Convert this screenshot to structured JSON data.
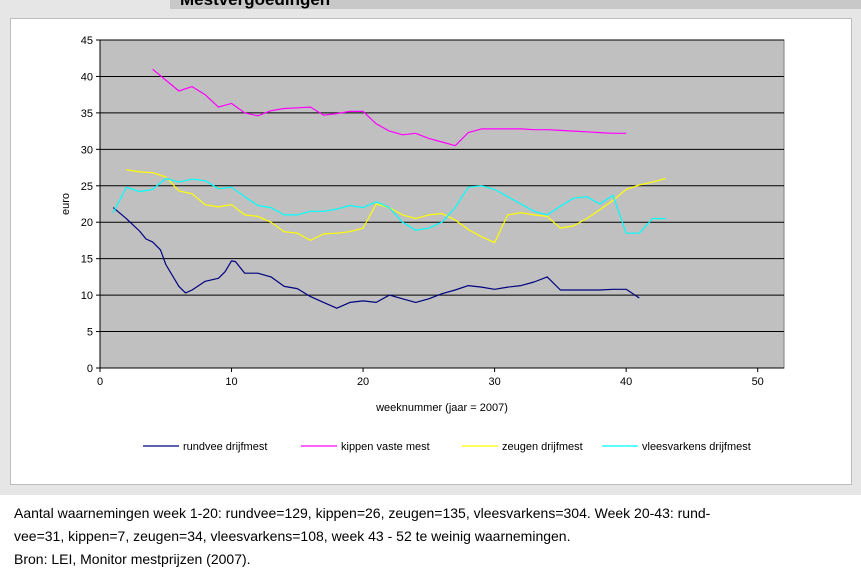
{
  "header": {
    "title_fragment": "Mestvergoedingen"
  },
  "caption": {
    "line1": "Aantal waarnemingen week 1-20: rundvee=129, kippen=26, zeugen=135, vleesvarkens=304. Week 20-43: rund-",
    "line2": "vee=31, kippen=7, zeugen=34, vleesvarkens=108, week 43 - 52 te weinig waarnemingen.",
    "line3": "Bron: LEI, Monitor mestprijzen (2007)."
  },
  "chart_data": {
    "type": "line",
    "title": "",
    "xlabel": "weeknummer (jaar = 2007)",
    "ylabel": "euro",
    "xlim": [
      0,
      52
    ],
    "ylim": [
      0,
      45
    ],
    "xticks": [
      0,
      10,
      20,
      30,
      40,
      50
    ],
    "yticks": [
      0,
      5,
      10,
      15,
      20,
      25,
      30,
      35,
      40,
      45
    ],
    "grid": "horizontal",
    "plot_background": "#c0c0c0",
    "legend_position": "bottom",
    "series": [
      {
        "name": "rundvee drijfmest",
        "color": "#000080",
        "points": [
          [
            1,
            22
          ],
          [
            2,
            20.5
          ],
          [
            3,
            18.8
          ],
          [
            3.5,
            17.7
          ],
          [
            4,
            17.3
          ],
          [
            4.6,
            16.2
          ],
          [
            5,
            14.2
          ],
          [
            6,
            11.2
          ],
          [
            6.5,
            10.3
          ],
          [
            7,
            10.7
          ],
          [
            8,
            11.9
          ],
          [
            9,
            12.3
          ],
          [
            9.5,
            13.2
          ],
          [
            10,
            14.7
          ],
          [
            10.3,
            14.6
          ],
          [
            11,
            13
          ],
          [
            12,
            13
          ],
          [
            13,
            12.5
          ],
          [
            14,
            11.2
          ],
          [
            15,
            10.9
          ],
          [
            16,
            9.8
          ],
          [
            17,
            9
          ],
          [
            18,
            8.2
          ],
          [
            19,
            9
          ],
          [
            20,
            9.2
          ],
          [
            21,
            9
          ],
          [
            22,
            10
          ],
          [
            23,
            9.5
          ],
          [
            24,
            9
          ],
          [
            25,
            9.5
          ],
          [
            26,
            10.2
          ],
          [
            27,
            10.7
          ],
          [
            28,
            11.3
          ],
          [
            29,
            11.1
          ],
          [
            30,
            10.8
          ],
          [
            31,
            11.1
          ],
          [
            32,
            11.3
          ],
          [
            33,
            11.8
          ],
          [
            34,
            12.5
          ],
          [
            35,
            10.7
          ],
          [
            36,
            10.7
          ],
          [
            37,
            10.7
          ],
          [
            38,
            10.7
          ],
          [
            39,
            10.8
          ],
          [
            40,
            10.8
          ],
          [
            41,
            9.6
          ]
        ]
      },
      {
        "name": "kippen vaste mest",
        "color": "#ff00ff",
        "points": [
          [
            4,
            41
          ],
          [
            5,
            39.5
          ],
          [
            6,
            38
          ],
          [
            7,
            38.6
          ],
          [
            8,
            37.5
          ],
          [
            9,
            35.8
          ],
          [
            10,
            36.3
          ],
          [
            11,
            35
          ],
          [
            12,
            34.6
          ],
          [
            13,
            35.3
          ],
          [
            14,
            35.6
          ],
          [
            15,
            35.7
          ],
          [
            16,
            35.8
          ],
          [
            17,
            34.7
          ],
          [
            18,
            34.9
          ],
          [
            19,
            35.2
          ],
          [
            20,
            35.2
          ],
          [
            21,
            33.5
          ],
          [
            22,
            32.5
          ],
          [
            23,
            32
          ],
          [
            24,
            32.2
          ],
          [
            25,
            31.5
          ],
          [
            26,
            31
          ],
          [
            27,
            30.5
          ],
          [
            28,
            32.3
          ],
          [
            29,
            32.8
          ],
          [
            30,
            32.8
          ],
          [
            31,
            32.8
          ],
          [
            32,
            32.8
          ],
          [
            33,
            32.7
          ],
          [
            34,
            32.7
          ],
          [
            35,
            32.6
          ],
          [
            36,
            32.5
          ],
          [
            37,
            32.4
          ],
          [
            38,
            32.3
          ],
          [
            39,
            32.2
          ],
          [
            40,
            32.2
          ]
        ]
      },
      {
        "name": "zeugen drijfmest",
        "color": "#ffff00",
        "points": [
          [
            2,
            27.2
          ],
          [
            3,
            26.9
          ],
          [
            4,
            26.8
          ],
          [
            5,
            26.2
          ],
          [
            6,
            24.3
          ],
          [
            7,
            23.9
          ],
          [
            8,
            22.4
          ],
          [
            9,
            22.1
          ],
          [
            10,
            22.4
          ],
          [
            11,
            21
          ],
          [
            12,
            20.8
          ],
          [
            13,
            20
          ],
          [
            14,
            18.7
          ],
          [
            15,
            18.5
          ],
          [
            16,
            17.5
          ],
          [
            17,
            18.4
          ],
          [
            18,
            18.5
          ],
          [
            19,
            18.7
          ],
          [
            20,
            19.2
          ],
          [
            21,
            22.5
          ],
          [
            22,
            22
          ],
          [
            23,
            21
          ],
          [
            24,
            20.5
          ],
          [
            25,
            21
          ],
          [
            26,
            21.2
          ],
          [
            27,
            20.3
          ],
          [
            28,
            19
          ],
          [
            29,
            18
          ],
          [
            30,
            17.2
          ],
          [
            31,
            21
          ],
          [
            32,
            21.3
          ],
          [
            33,
            21
          ],
          [
            34,
            20.8
          ],
          [
            35,
            19.2
          ],
          [
            36,
            19.5
          ],
          [
            37,
            20.5
          ],
          [
            38,
            21.7
          ],
          [
            39,
            23
          ],
          [
            40,
            24.5
          ],
          [
            41,
            25.1
          ],
          [
            42,
            25.5
          ],
          [
            43,
            26
          ]
        ]
      },
      {
        "name": "vleesvarkens drijfmest",
        "color": "#00ffff",
        "points": [
          [
            1,
            21.3
          ],
          [
            2,
            24.8
          ],
          [
            3,
            24.2
          ],
          [
            4,
            24.5
          ],
          [
            5,
            26
          ],
          [
            6,
            25.5
          ],
          [
            7,
            25.9
          ],
          [
            8,
            25.7
          ],
          [
            9,
            24.6
          ],
          [
            10,
            24.8
          ],
          [
            11,
            23.5
          ],
          [
            12,
            22.3
          ],
          [
            13,
            22
          ],
          [
            14,
            21
          ],
          [
            15,
            21
          ],
          [
            16,
            21.5
          ],
          [
            17,
            21.5
          ],
          [
            18,
            21.8
          ],
          [
            19,
            22.3
          ],
          [
            20,
            22
          ],
          [
            21,
            22.8
          ],
          [
            22,
            22
          ],
          [
            23,
            20
          ],
          [
            24,
            18.9
          ],
          [
            25,
            19.2
          ],
          [
            26,
            20
          ],
          [
            27,
            22
          ],
          [
            28,
            24.8
          ],
          [
            29,
            25
          ],
          [
            30,
            24.5
          ],
          [
            31,
            23.5
          ],
          [
            32,
            22.5
          ],
          [
            33,
            21.5
          ],
          [
            34,
            21
          ],
          [
            35,
            22.2
          ],
          [
            36,
            23.3
          ],
          [
            37,
            23.5
          ],
          [
            38,
            22.5
          ],
          [
            39,
            23.7
          ],
          [
            40,
            18.5
          ],
          [
            41,
            18.5
          ],
          [
            42,
            20.5
          ],
          [
            43,
            20.5
          ]
        ]
      }
    ]
  }
}
